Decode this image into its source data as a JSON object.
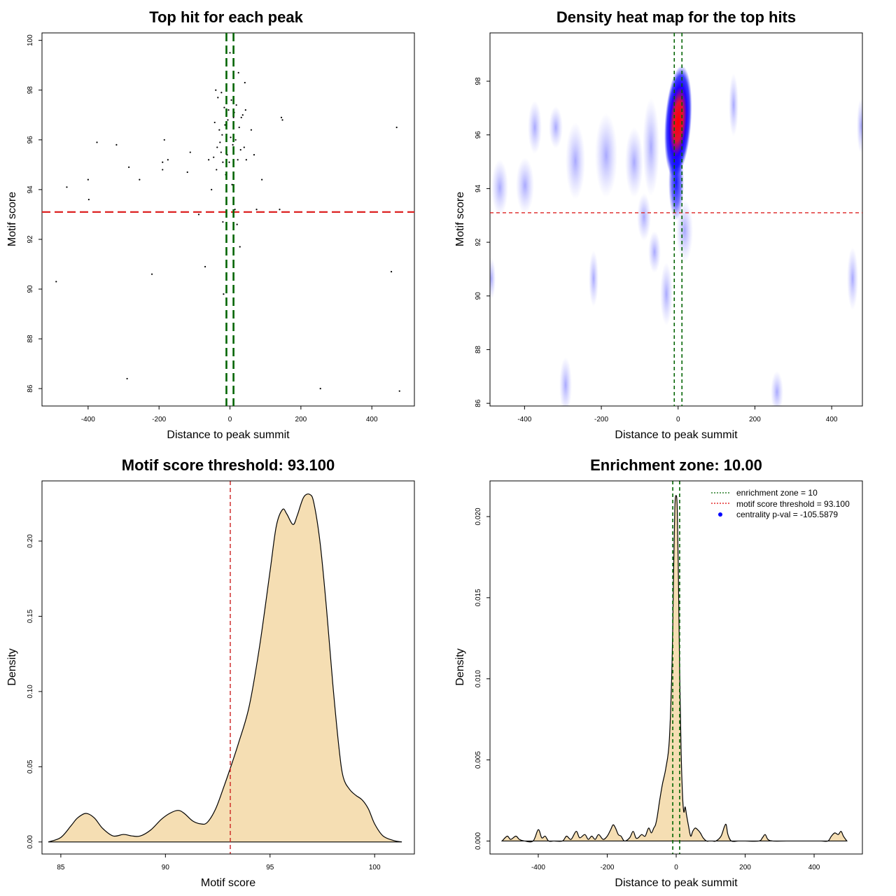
{
  "chart_data": [
    {
      "id": "scatter",
      "type": "scatter",
      "title": "Top hit for each peak",
      "xlabel": "Distance to peak summit",
      "ylabel": "Motif score",
      "xlim": [
        -530,
        520
      ],
      "ylim": [
        85.3,
        100.3
      ],
      "xticks": [
        -400,
        -200,
        0,
        200,
        400
      ],
      "yticks": [
        86,
        88,
        90,
        92,
        94,
        96,
        98,
        100
      ],
      "hline": 93.1,
      "vlines": [
        -10,
        10
      ],
      "points": [
        [
          -490,
          90.3
        ],
        [
          -460,
          94.1
        ],
        [
          -400,
          94.4
        ],
        [
          -398,
          93.6
        ],
        [
          -375,
          95.9
        ],
        [
          -320,
          95.8
        ],
        [
          -290,
          86.4
        ],
        [
          -285,
          94.9
        ],
        [
          -255,
          94.4
        ],
        [
          -220,
          90.6
        ],
        [
          -190,
          94.8
        ],
        [
          -190,
          95.1
        ],
        [
          -185,
          96.0
        ],
        [
          -175,
          95.2
        ],
        [
          -120,
          94.7
        ],
        [
          -112,
          95.5
        ],
        [
          -88,
          93.0
        ],
        [
          -70,
          90.9
        ],
        [
          -60,
          95.2
        ],
        [
          -52,
          94.0
        ],
        [
          -46,
          95.3
        ],
        [
          -43,
          96.7
        ],
        [
          -40,
          98.0
        ],
        [
          -38,
          94.8
        ],
        [
          -36,
          95.7
        ],
        [
          -34,
          97.7
        ],
        [
          -30,
          96.4
        ],
        [
          -28,
          95.9
        ],
        [
          -25,
          95.5
        ],
        [
          -24,
          97.9
        ],
        [
          -22,
          96.2
        ],
        [
          -20,
          92.7
        ],
        [
          -20,
          95.1
        ],
        [
          -18,
          89.8
        ],
        [
          -16,
          97.3
        ],
        [
          -14,
          96.6
        ],
        [
          -12,
          94.6
        ],
        [
          -10,
          97.0
        ],
        [
          -8,
          95.4
        ],
        [
          -6,
          96.8
        ],
        [
          -4,
          97.2
        ],
        [
          -2,
          95.1
        ],
        [
          0,
          99.5
        ],
        [
          2,
          96.1
        ],
        [
          4,
          97.6
        ],
        [
          6,
          94.2
        ],
        [
          8,
          95.8
        ],
        [
          10,
          96.9
        ],
        [
          12,
          97.1
        ],
        [
          14,
          93.2
        ],
        [
          16,
          96.0
        ],
        [
          18,
          97.4
        ],
        [
          20,
          92.6
        ],
        [
          22,
          95.2
        ],
        [
          24,
          98.7
        ],
        [
          26,
          96.5
        ],
        [
          28,
          91.7
        ],
        [
          30,
          95.6
        ],
        [
          32,
          96.9
        ],
        [
          36,
          97.0
        ],
        [
          40,
          95.7
        ],
        [
          42,
          98.3
        ],
        [
          44,
          97.2
        ],
        [
          46,
          95.2
        ],
        [
          60,
          96.4
        ],
        [
          68,
          95.4
        ],
        [
          75,
          93.2
        ],
        [
          90,
          94.4
        ],
        [
          140,
          93.2
        ],
        [
          145,
          96.9
        ],
        [
          148,
          96.8
        ],
        [
          255,
          86.0
        ],
        [
          455,
          90.7
        ],
        [
          470,
          96.5
        ],
        [
          478,
          85.9
        ]
      ]
    },
    {
      "id": "heatmap",
      "type": "heatmap",
      "title": "Density heat map for the top hits",
      "xlabel": "Distance to peak summit",
      "ylabel": "Motif score",
      "xlim": [
        -490,
        480
      ],
      "ylim": [
        85.9,
        99.8
      ],
      "xticks": [
        -400,
        -200,
        0,
        200,
        400
      ],
      "yticks": [
        86,
        88,
        90,
        92,
        94,
        96,
        98
      ],
      "hline": 93.1,
      "vlines": [
        -10,
        10
      ],
      "hotspot": {
        "x": 0,
        "y": 96.5
      },
      "colors": [
        "#ffffff",
        "#0000ff",
        "#ff0000"
      ]
    },
    {
      "id": "score_density",
      "type": "area",
      "title": "Motif score threshold: 93.100",
      "xlabel": "Motif score",
      "ylabel": "Density",
      "xlim": [
        84.1,
        101.9
      ],
      "ylim": [
        -0.008,
        0.24
      ],
      "xticks": [
        85,
        90,
        95,
        100
      ],
      "yticks": [
        0.0,
        0.05,
        0.1,
        0.15,
        0.2
      ],
      "ytick_labels": [
        "0.00",
        "0.05",
        "0.10",
        "0.15",
        "0.20"
      ],
      "vline": 93.1,
      "fill": "#f5deb3",
      "x": [
        84.4,
        85.0,
        85.5,
        85.8,
        86.2,
        86.6,
        87.0,
        87.5,
        88.0,
        88.4,
        88.8,
        89.3,
        89.8,
        90.2,
        90.6,
        90.9,
        91.3,
        91.7,
        92.0,
        92.4,
        92.8,
        93.1,
        93.5,
        94.0,
        94.5,
        95.0,
        95.3,
        95.6,
        95.8,
        96.1,
        96.3,
        96.6,
        96.9,
        97.1,
        97.4,
        97.7,
        98.0,
        98.3,
        98.5,
        98.8,
        99.1,
        99.4,
        99.7,
        100.0,
        100.4,
        100.9,
        101.3
      ],
      "y": [
        0.0,
        0.003,
        0.011,
        0.016,
        0.019,
        0.016,
        0.009,
        0.004,
        0.005,
        0.004,
        0.004,
        0.008,
        0.015,
        0.019,
        0.021,
        0.019,
        0.014,
        0.012,
        0.013,
        0.022,
        0.037,
        0.049,
        0.066,
        0.09,
        0.13,
        0.18,
        0.21,
        0.221,
        0.218,
        0.211,
        0.217,
        0.229,
        0.231,
        0.225,
        0.198,
        0.155,
        0.105,
        0.062,
        0.043,
        0.035,
        0.031,
        0.028,
        0.022,
        0.012,
        0.004,
        0.001,
        0.0
      ]
    },
    {
      "id": "distance_density",
      "type": "area",
      "title": "Enrichment zone: 10.00",
      "xlabel": "Distance to peak summit",
      "ylabel": "Density",
      "xlim": [
        -540,
        540
      ],
      "ylim": [
        -0.0008,
        0.0222
      ],
      "xticks": [
        -400,
        -200,
        0,
        200,
        400
      ],
      "yticks": [
        0.0,
        0.005,
        0.01,
        0.015,
        0.02
      ],
      "ytick_labels": [
        "0.000",
        "0.005",
        "0.010",
        "0.015",
        "0.020"
      ],
      "vlines": [
        -10,
        10
      ],
      "fill": "#f5deb3",
      "legend": [
        {
          "label": "enrichment zone = 10",
          "color": "#006400",
          "style": "dotted"
        },
        {
          "label": "motif score threshold = 93.100",
          "color": "#dd0000",
          "style": "dotted"
        },
        {
          "label": "centrality p-val = -105.5879",
          "color": "#0000ff",
          "style": "point"
        }
      ],
      "x": [
        -505,
        -490,
        -480,
        -465,
        -455,
        -440,
        -415,
        -400,
        -390,
        -380,
        -370,
        -355,
        -330,
        -318,
        -305,
        -290,
        -280,
        -265,
        -255,
        -245,
        -235,
        -225,
        -212,
        -200,
        -190,
        -183,
        -176,
        -168,
        -160,
        -150,
        -135,
        -125,
        -117,
        -110,
        -100,
        -90,
        -80,
        -72,
        -65,
        -60,
        -55,
        -48,
        -40,
        -30,
        -20,
        -12,
        -8,
        -4,
        0,
        3,
        6,
        10,
        14,
        18,
        22,
        26,
        30,
        36,
        42,
        48,
        55,
        62,
        70,
        78,
        88,
        95,
        105,
        115,
        130,
        140,
        145,
        150,
        160,
        180,
        200,
        240,
        250,
        258,
        266,
        280,
        320,
        380,
        420,
        440,
        450,
        460,
        470,
        478,
        485,
        495
      ],
      "y": [
        0.0,
        0.0003,
        0.0001,
        0.0003,
        0.0001,
        0.0,
        0.0,
        0.0007,
        0.0002,
        0.0003,
        0.0,
        0.0,
        0.0,
        0.0003,
        0.0001,
        0.0006,
        0.0002,
        0.0004,
        0.0001,
        0.0003,
        0.0001,
        0.0004,
        0.0001,
        0.0003,
        0.0007,
        0.001,
        0.0008,
        0.0004,
        0.0003,
        0.0,
        0.0002,
        0.0006,
        0.0002,
        0.0002,
        0.0004,
        0.0003,
        0.0008,
        0.0005,
        0.0008,
        0.001,
        0.0015,
        0.0025,
        0.0035,
        0.0045,
        0.0062,
        0.011,
        0.016,
        0.0205,
        0.0213,
        0.0205,
        0.017,
        0.0105,
        0.0058,
        0.003,
        0.0018,
        0.0021,
        0.0016,
        0.0009,
        0.0003,
        0.0006,
        0.0008,
        0.0007,
        0.0005,
        0.0002,
        0.0,
        0.0,
        0.0,
        0.0,
        0.0003,
        0.0009,
        0.001,
        0.0004,
        0.0,
        0.0,
        0.0,
        0.0,
        0.0002,
        0.0004,
        0.0001,
        0.0,
        0.0,
        0.0,
        0.0,
        0.0,
        0.0003,
        0.0005,
        0.0004,
        0.0006,
        0.0003,
        0.0
      ]
    }
  ]
}
